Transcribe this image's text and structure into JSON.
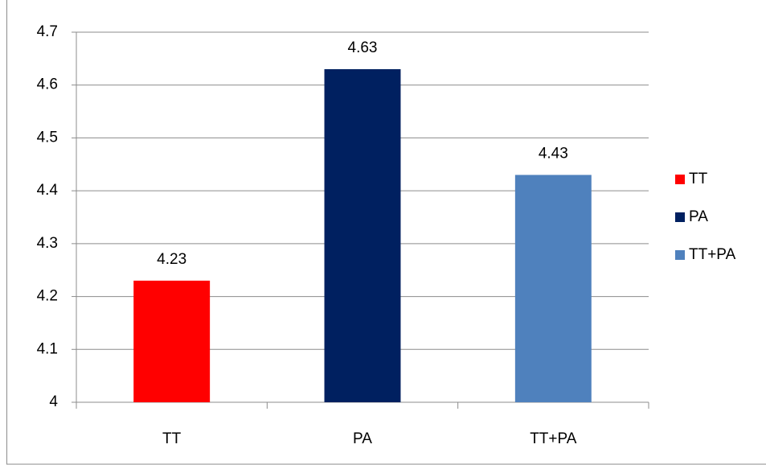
{
  "chart_data": {
    "type": "bar",
    "categories": [
      "TT",
      "PA",
      "TT+PA"
    ],
    "values": [
      4.23,
      4.63,
      4.43
    ],
    "colors": [
      "#ff0000",
      "#002060",
      "#4f81bd"
    ],
    "ylim": [
      4,
      4.7
    ],
    "yticks": [
      4,
      4.1,
      4.2,
      4.3,
      4.4,
      4.5,
      4.6,
      4.7
    ],
    "grid": true,
    "legend": "right"
  }
}
